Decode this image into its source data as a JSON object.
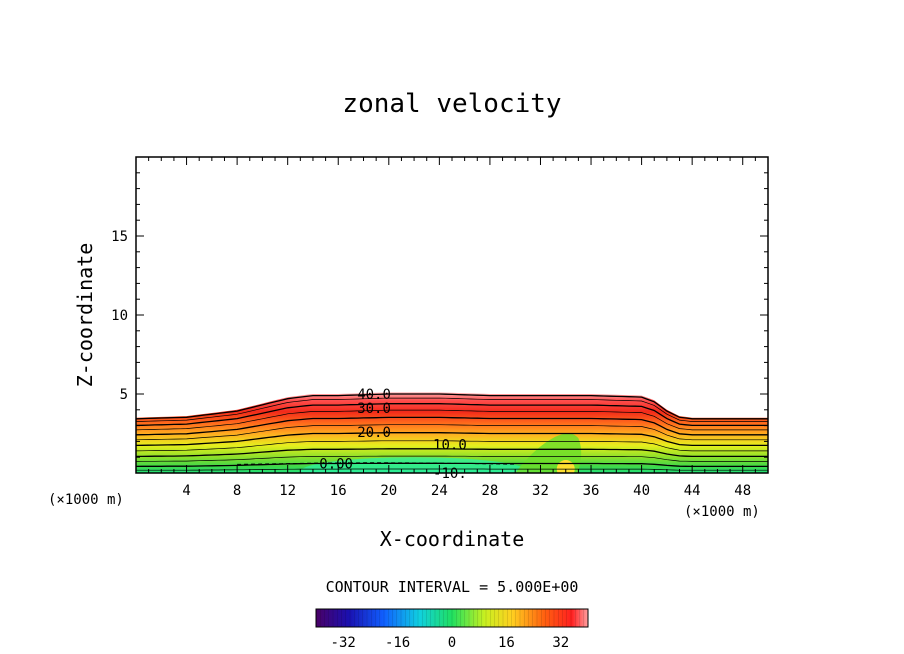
{
  "chart_data": {
    "type": "contour",
    "title": "zonal velocity",
    "xlabel": "X-coordinate",
    "ylabel": "Z-coordinate",
    "x_unit": "(×1000 m)",
    "xlim": [
      0,
      50
    ],
    "ylim": [
      0,
      20
    ],
    "x_ticks": [
      4,
      8,
      12,
      16,
      20,
      24,
      28,
      32,
      36,
      40,
      44,
      48
    ],
    "y_ticks": [
      5,
      10,
      15
    ],
    "contour_interval_text": "CONTOUR INTERVAL = 5.000E+00",
    "contour_labels": [
      {
        "text": "40.0",
        "x": 17.5,
        "z": 5.0
      },
      {
        "text": "30.0",
        "x": 17.5,
        "z": 4.1
      },
      {
        "text": "20.0",
        "x": 17.5,
        "z": 2.6
      },
      {
        "text": "10.0",
        "x": 23.5,
        "z": 1.8
      },
      {
        "text": "0.00",
        "x": 14.5,
        "z": 0.6
      },
      {
        "text": "-10.",
        "x": 23.5,
        "z": 0.0
      }
    ],
    "top_boundary_x": [
      0,
      4,
      8,
      10,
      12,
      14,
      16,
      20,
      24,
      28,
      32,
      36,
      40,
      41,
      42,
      43,
      44,
      48,
      50
    ],
    "top_boundary_z": [
      3.5,
      3.6,
      4.0,
      4.4,
      4.8,
      5.0,
      5.0,
      5.1,
      5.1,
      5.0,
      5.0,
      5.0,
      4.9,
      4.6,
      4.0,
      3.6,
      3.5,
      3.5,
      3.5
    ],
    "colorbar": {
      "min": -40,
      "max": 40,
      "ticks": [
        "-32",
        "-16",
        "0",
        "16",
        "32"
      ],
      "tick_values": [
        -32,
        -16,
        0,
        16,
        32
      ],
      "colormap": "rainbow"
    }
  }
}
